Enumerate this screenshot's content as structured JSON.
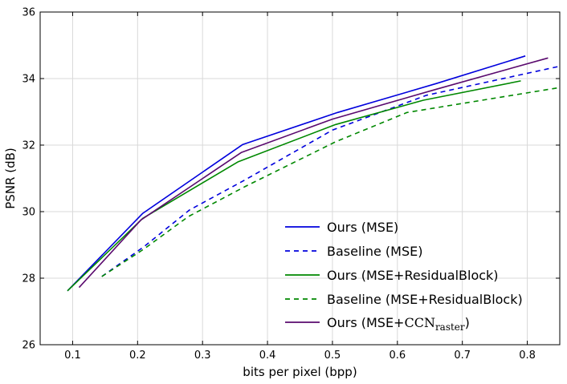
{
  "chart_data": {
    "type": "line",
    "title": "",
    "xlabel": "bits per pixel (bpp)",
    "ylabel": "PSNR (dB)",
    "xlim": [
      0.05,
      0.85
    ],
    "ylim": [
      26,
      36
    ],
    "xticks": [
      0.1,
      0.2,
      0.3,
      0.4,
      0.5,
      0.6,
      0.7,
      0.8
    ],
    "xtick_labels": [
      "0.1",
      "0.2",
      "0.3",
      "0.4",
      "0.5",
      "0.6",
      "0.7",
      "0.8"
    ],
    "yticks": [
      26,
      28,
      30,
      32,
      34,
      36
    ],
    "ytick_labels": [
      "26",
      "28",
      "30",
      "32",
      "34",
      "36"
    ],
    "grid": true,
    "legend_position": "bottom-right",
    "series": [
      {
        "name": "Ours (MSE)",
        "label": "Ours (MSE)",
        "color": "#0000dd",
        "style": "solid",
        "x": [
          0.092,
          0.208,
          0.362,
          0.508,
          0.66,
          0.797
        ],
        "y": [
          27.62,
          29.95,
          32.02,
          32.98,
          33.85,
          34.68
        ]
      },
      {
        "name": "Baseline (MSE)",
        "label": "Baseline (MSE)",
        "color": "#0000dd",
        "style": "dashed",
        "x": [
          0.145,
          0.21,
          0.28,
          0.365,
          0.5,
          0.645,
          0.85
        ],
        "y": [
          28.05,
          28.95,
          30.05,
          30.95,
          32.45,
          33.5,
          34.37
        ]
      },
      {
        "name": "Ours (MSE+ResidualBlock)",
        "label": "Ours (MSE+ResidualBlock)",
        "color": "#008800",
        "style": "solid",
        "x": [
          0.092,
          0.208,
          0.355,
          0.505,
          0.64,
          0.79
        ],
        "y": [
          27.62,
          29.8,
          31.5,
          32.62,
          33.35,
          33.93
        ]
      },
      {
        "name": "Baseline (MSE+ResidualBlock)",
        "label": "Baseline (MSE+ResidualBlock)",
        "color": "#008800",
        "style": "dashed",
        "x": [
          0.145,
          0.21,
          0.278,
          0.365,
          0.505,
          0.615,
          0.85
        ],
        "y": [
          28.05,
          28.88,
          29.85,
          30.75,
          32.1,
          32.98,
          33.73
        ]
      },
      {
        "name": "Ours (MSE+CCN_raster)",
        "label_prefix": "Ours (MSE+",
        "label_ccn": "CCN",
        "label_sub": "raster",
        "label_suffix": ")",
        "color": "#5a0a6e",
        "style": "solid",
        "x": [
          0.11,
          0.205,
          0.36,
          0.5,
          0.66,
          0.832
        ],
        "y": [
          27.72,
          29.75,
          31.78,
          32.78,
          33.68,
          34.62
        ]
      }
    ]
  }
}
